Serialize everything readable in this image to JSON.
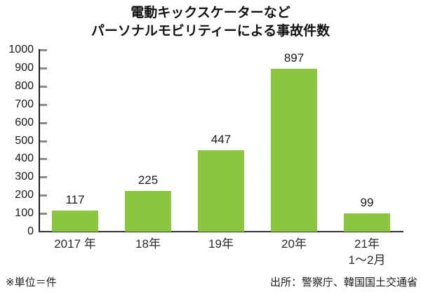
{
  "title": {
    "line1": "電動キックスケーターなど",
    "line2": "パーソナルモビリティーによる事故件数"
  },
  "chart_data": {
    "type": "bar",
    "title": "電動キックスケーターなど パーソナルモビリティーによる事故件数",
    "categories": [
      "2017 年",
      "18年",
      "19年",
      "20年",
      "21年"
    ],
    "category_sublabels": [
      "",
      "",
      "",
      "",
      "1～2月"
    ],
    "values": [
      117,
      225,
      447,
      897,
      99
    ],
    "value_labels": [
      "117",
      "225",
      "447",
      "897",
      "99"
    ],
    "xlabel": "",
    "ylabel": "",
    "ylim": [
      0,
      1000
    ],
    "ytick_step": 100,
    "ytick_labels": [
      "0",
      "100",
      "200",
      "300",
      "400",
      "500",
      "600",
      "700",
      "800",
      "900",
      "1000"
    ],
    "grid": false,
    "legend_position": "none",
    "bar_color": "#8cc63e",
    "axis_color": "#1a1a1a",
    "tick_color": "#8a8a8a"
  },
  "footer": {
    "unit_note": "※単位＝件",
    "source_note": "出所：警察庁、韓国国土交通省"
  }
}
